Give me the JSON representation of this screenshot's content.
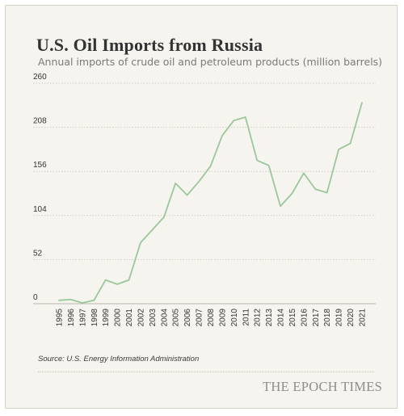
{
  "header": {
    "title": "U.S. Oil Imports from Russia",
    "subtitle": "Annual imports of crude oil and petroleum products (million barrels)"
  },
  "footer": {
    "source": "Source: U.S. Energy Information Administration",
    "brand": "THE EPOCH TIMES"
  },
  "colors": {
    "line": "#9ac79c",
    "background": "#f6f4ee",
    "grid": "#cfcdc5",
    "text": "#333333"
  },
  "chart_data": {
    "type": "line",
    "title": "U.S. Oil Imports from Russia",
    "subtitle": "Annual imports of crude oil and petroleum products (million barrels)",
    "xlabel": "",
    "ylabel": "",
    "grid": true,
    "ylim": [
      0,
      260
    ],
    "yticks": [
      0,
      52,
      104,
      156,
      208,
      260
    ],
    "x": [
      "1995",
      "1996",
      "1997",
      "1998",
      "1999",
      "2000",
      "2001",
      "2002",
      "2003",
      "2004",
      "2005",
      "2006",
      "2007",
      "2008",
      "2009",
      "2010",
      "2011",
      "2012",
      "2013",
      "2014",
      "2015",
      "2016",
      "2017",
      "2018",
      "2019",
      "2020",
      "2021"
    ],
    "series": [
      {
        "values": [
          4,
          5,
          1,
          4,
          28,
          23,
          28,
          72,
          87,
          102,
          142,
          128,
          144,
          162,
          198,
          216,
          220,
          169,
          163,
          115,
          130,
          154,
          135,
          131,
          182,
          189,
          237
        ]
      }
    ]
  }
}
